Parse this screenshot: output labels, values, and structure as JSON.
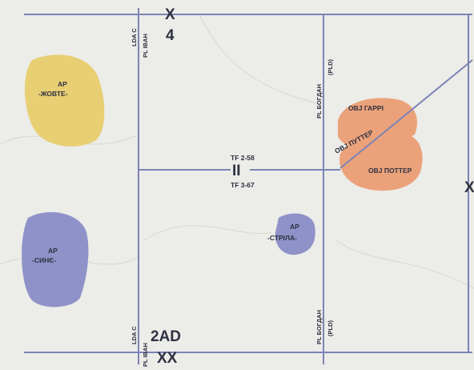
{
  "grid": {
    "top_left_boundary": [
      "LDA C",
      "PL IBAH"
    ],
    "top_marker": [
      "X",
      "4"
    ],
    "bottom_left_boundary": [
      "LDA C",
      "PL IBAH"
    ],
    "bottom_marker": [
      "2AD",
      "XX"
    ],
    "right_boundary_top": [
      "PL БОГДАН",
      "(PLD)"
    ],
    "right_boundary_bottom": [
      "PL БОГДАН",
      "(PLD)"
    ],
    "center_label": [
      "TF 2-58",
      "II",
      "TF 3-67"
    ],
    "right_edge_marker": "X"
  },
  "areas": [
    {
      "id": "zhovte",
      "lines": [
        "AP",
        "-ЖОВТЕ-"
      ],
      "color": "#e8cf73"
    },
    {
      "id": "synie",
      "lines": [
        "AP",
        "-СИНЄ-"
      ],
      "color": "#8e92c8"
    },
    {
      "id": "strila",
      "lines": [
        "AP",
        "-СТРІЛА-"
      ],
      "color": "#8e92c8"
    },
    {
      "id": "harri",
      "lines": [
        "OBJ ГАРРІ"
      ],
      "color": "#eb9a66"
    },
    {
      "id": "potter",
      "lines": [
        "OBJ ПОТТЕР"
      ],
      "color": "#eb9a66"
    }
  ],
  "route_label": "OBJ ПУТТЕР",
  "colors": {
    "line": "#7c84b6",
    "yellow": "#e8cf73",
    "blue": "#8e92c8",
    "orange": "#eb9a66",
    "text": "#2e3140",
    "background": "#ecece8"
  }
}
